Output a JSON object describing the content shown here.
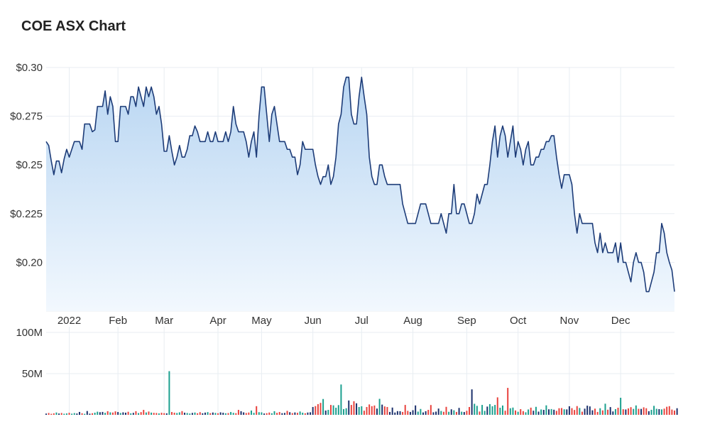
{
  "chart_data": {
    "type": "line",
    "title": "COE ASX Chart",
    "price_axis": {
      "ticks": [
        0.2,
        0.225,
        0.25,
        0.275,
        0.3
      ],
      "tick_labels": [
        "$0.20",
        "$0.225",
        "$0.25",
        "$0.275",
        "$0.30"
      ],
      "ylim": [
        0.175,
        0.3
      ]
    },
    "volume_axis": {
      "ticks": [
        50,
        100
      ],
      "tick_labels": [
        "50M",
        "100M"
      ],
      "ylim": [
        0,
        100
      ]
    },
    "x_labels": [
      "2022",
      "Feb",
      "Mar",
      "Apr",
      "May",
      "Jun",
      "Jul",
      "Aug",
      "Sep",
      "Oct",
      "Nov",
      "Dec"
    ],
    "x_label_index": [
      9,
      28,
      46,
      67,
      84,
      104,
      123,
      143,
      164,
      184,
      204,
      224
    ],
    "price_series": [
      0.262,
      0.26,
      0.252,
      0.245,
      0.252,
      0.252,
      0.246,
      0.253,
      0.258,
      0.254,
      0.258,
      0.262,
      0.262,
      0.262,
      0.258,
      0.271,
      0.271,
      0.271,
      0.267,
      0.268,
      0.28,
      0.28,
      0.28,
      0.288,
      0.276,
      0.285,
      0.28,
      0.262,
      0.262,
      0.28,
      0.28,
      0.28,
      0.276,
      0.285,
      0.285,
      0.28,
      0.29,
      0.285,
      0.28,
      0.29,
      0.285,
      0.29,
      0.285,
      0.276,
      0.28,
      0.271,
      0.257,
      0.257,
      0.265,
      0.257,
      0.25,
      0.254,
      0.26,
      0.254,
      0.254,
      0.258,
      0.265,
      0.265,
      0.27,
      0.267,
      0.262,
      0.262,
      0.262,
      0.267,
      0.262,
      0.262,
      0.267,
      0.262,
      0.262,
      0.262,
      0.267,
      0.262,
      0.267,
      0.28,
      0.271,
      0.267,
      0.267,
      0.267,
      0.262,
      0.254,
      0.262,
      0.267,
      0.254,
      0.275,
      0.29,
      0.29,
      0.276,
      0.262,
      0.276,
      0.28,
      0.271,
      0.262,
      0.262,
      0.262,
      0.258,
      0.258,
      0.254,
      0.254,
      0.245,
      0.25,
      0.262,
      0.258,
      0.258,
      0.258,
      0.258,
      0.25,
      0.244,
      0.24,
      0.244,
      0.244,
      0.25,
      0.24,
      0.244,
      0.254,
      0.271,
      0.276,
      0.29,
      0.295,
      0.295,
      0.276,
      0.271,
      0.271,
      0.285,
      0.295,
      0.285,
      0.276,
      0.254,
      0.244,
      0.24,
      0.24,
      0.25,
      0.25,
      0.244,
      0.24,
      0.24,
      0.24,
      0.24,
      0.24,
      0.24,
      0.23,
      0.225,
      0.22,
      0.22,
      0.22,
      0.22,
      0.225,
      0.23,
      0.23,
      0.23,
      0.225,
      0.22,
      0.22,
      0.22,
      0.22,
      0.225,
      0.22,
      0.215,
      0.225,
      0.225,
      0.24,
      0.225,
      0.225,
      0.23,
      0.23,
      0.225,
      0.22,
      0.22,
      0.225,
      0.235,
      0.23,
      0.235,
      0.24,
      0.24,
      0.25,
      0.262,
      0.27,
      0.254,
      0.265,
      0.27,
      0.265,
      0.254,
      0.262,
      0.27,
      0.254,
      0.262,
      0.258,
      0.25,
      0.258,
      0.262,
      0.25,
      0.25,
      0.254,
      0.254,
      0.258,
      0.258,
      0.262,
      0.262,
      0.265,
      0.265,
      0.254,
      0.245,
      0.238,
      0.245,
      0.245,
      0.245,
      0.24,
      0.225,
      0.215,
      0.225,
      0.22,
      0.22,
      0.22,
      0.22,
      0.22,
      0.21,
      0.205,
      0.215,
      0.205,
      0.21,
      0.205,
      0.205,
      0.205,
      0.21,
      0.2,
      0.21,
      0.2,
      0.2,
      0.195,
      0.19,
      0.2,
      0.205,
      0.2,
      0.2,
      0.195,
      0.185,
      0.185,
      0.19,
      0.195,
      0.205,
      0.205,
      0.22,
      0.215,
      0.205,
      0.2,
      0.196,
      0.185
    ],
    "volume_series": [
      1.5,
      2.2,
      1.2,
      1.8,
      2.8,
      1.6,
      2.2,
      1.3,
      1.7,
      2.5,
      1.4,
      2.1,
      1.6,
      3.5,
      1.9,
      1.2,
      4.6,
      1.4,
      1.9,
      2.6,
      3.8,
      3.2,
      3.5,
      2.4,
      4.4,
      3.0,
      2.8,
      4.2,
      3.4,
      2.2,
      3.0,
      2.6,
      3.7,
      1.8,
      2.4,
      4.4,
      2.1,
      3.3,
      6.0,
      2.9,
      4.0,
      2.7,
      2.4,
      2.2,
      1.7,
      2.5,
      2.0,
      1.8,
      53.0,
      3.4,
      2.6,
      2.2,
      3.0,
      4.5,
      2.6,
      2.2,
      1.6,
      2.3,
      2.8,
      1.9,
      3.2,
      1.9,
      2.7,
      3.3,
      2.0,
      2.8,
      2.3,
      1.9,
      3.0,
      2.5,
      1.9,
      2.1,
      3.4,
      2.4,
      2.0,
      6.0,
      4.4,
      3.0,
      2.2,
      2.8,
      5.2,
      2.4,
      10.5,
      3.2,
      3.0,
      1.6,
      2.0,
      2.8,
      1.9,
      4.4,
      2.4,
      3.4,
      2.0,
      2.3,
      4.8,
      3.2,
      2.1,
      2.9,
      2.4,
      4.0,
      2.6,
      1.9,
      2.8,
      3.1,
      9.5,
      10.6,
      13.0,
      14.5,
      19.2,
      5.2,
      6.0,
      12.0,
      11.5,
      8.6,
      11.8,
      36.8,
      7.0,
      8.0,
      17.4,
      12.0,
      16.5,
      14.0,
      9.5,
      10.4,
      5.0,
      9.5,
      12.6,
      10.5,
      11.3,
      7.6,
      19.4,
      12.4,
      10.2,
      9.5,
      3.5,
      8.8,
      2.8,
      4.5,
      4.4,
      3.5,
      12.0,
      4.8,
      3.5,
      5.6,
      11.4,
      3.9,
      7.1,
      2.9,
      4.4,
      6.0,
      11.9,
      3.1,
      3.9,
      7.6,
      4.7,
      3.7,
      9.7,
      3.7,
      6.7,
      5.5,
      3.5,
      8.4,
      3.8,
      3.4,
      4.9,
      9.5,
      30.9,
      13.4,
      10.9,
      4.0,
      12.0,
      4.8,
      10.0,
      13.0,
      10.4,
      12.0,
      21.2,
      8.6,
      11.3,
      5.0,
      32.7,
      8.0,
      8.8,
      5.3,
      3.7,
      6.9,
      4.5,
      3.1,
      6.5,
      8.7,
      5.0,
      9.7,
      3.9,
      6.5,
      6.0,
      11.5,
      6.7,
      7.0,
      6.2,
      4.8,
      8.0,
      8.2,
      6.7,
      6.6,
      10.4,
      8.1,
      5.9,
      10.6,
      8.3,
      3.8,
      7.5,
      11.1,
      10.2,
      5.5,
      7.5,
      3.5,
      8.0,
      5.4,
      13.5,
      6.2,
      9.4,
      4.1,
      6.9,
      8.6,
      20.7,
      6.8,
      6.5,
      7.8,
      9.3,
      7.2,
      11.4,
      7.3,
      7.2,
      9.1,
      8.0,
      4.4,
      6.1,
      10.9,
      7.3,
      6.9,
      6.6,
      7.5,
      9.8,
      10.5,
      6.4,
      5.2,
      8.0
    ],
    "volume_colors": {
      "up": "#1a9f8e",
      "down": "#e8413c",
      "neutral": "#1a2f6b"
    },
    "colors": {
      "line": "#1d3c78",
      "area_top": "#b9d6f2",
      "area_bottom": "#f2f8fe",
      "grid": "#e8edf2"
    },
    "grid": true
  }
}
